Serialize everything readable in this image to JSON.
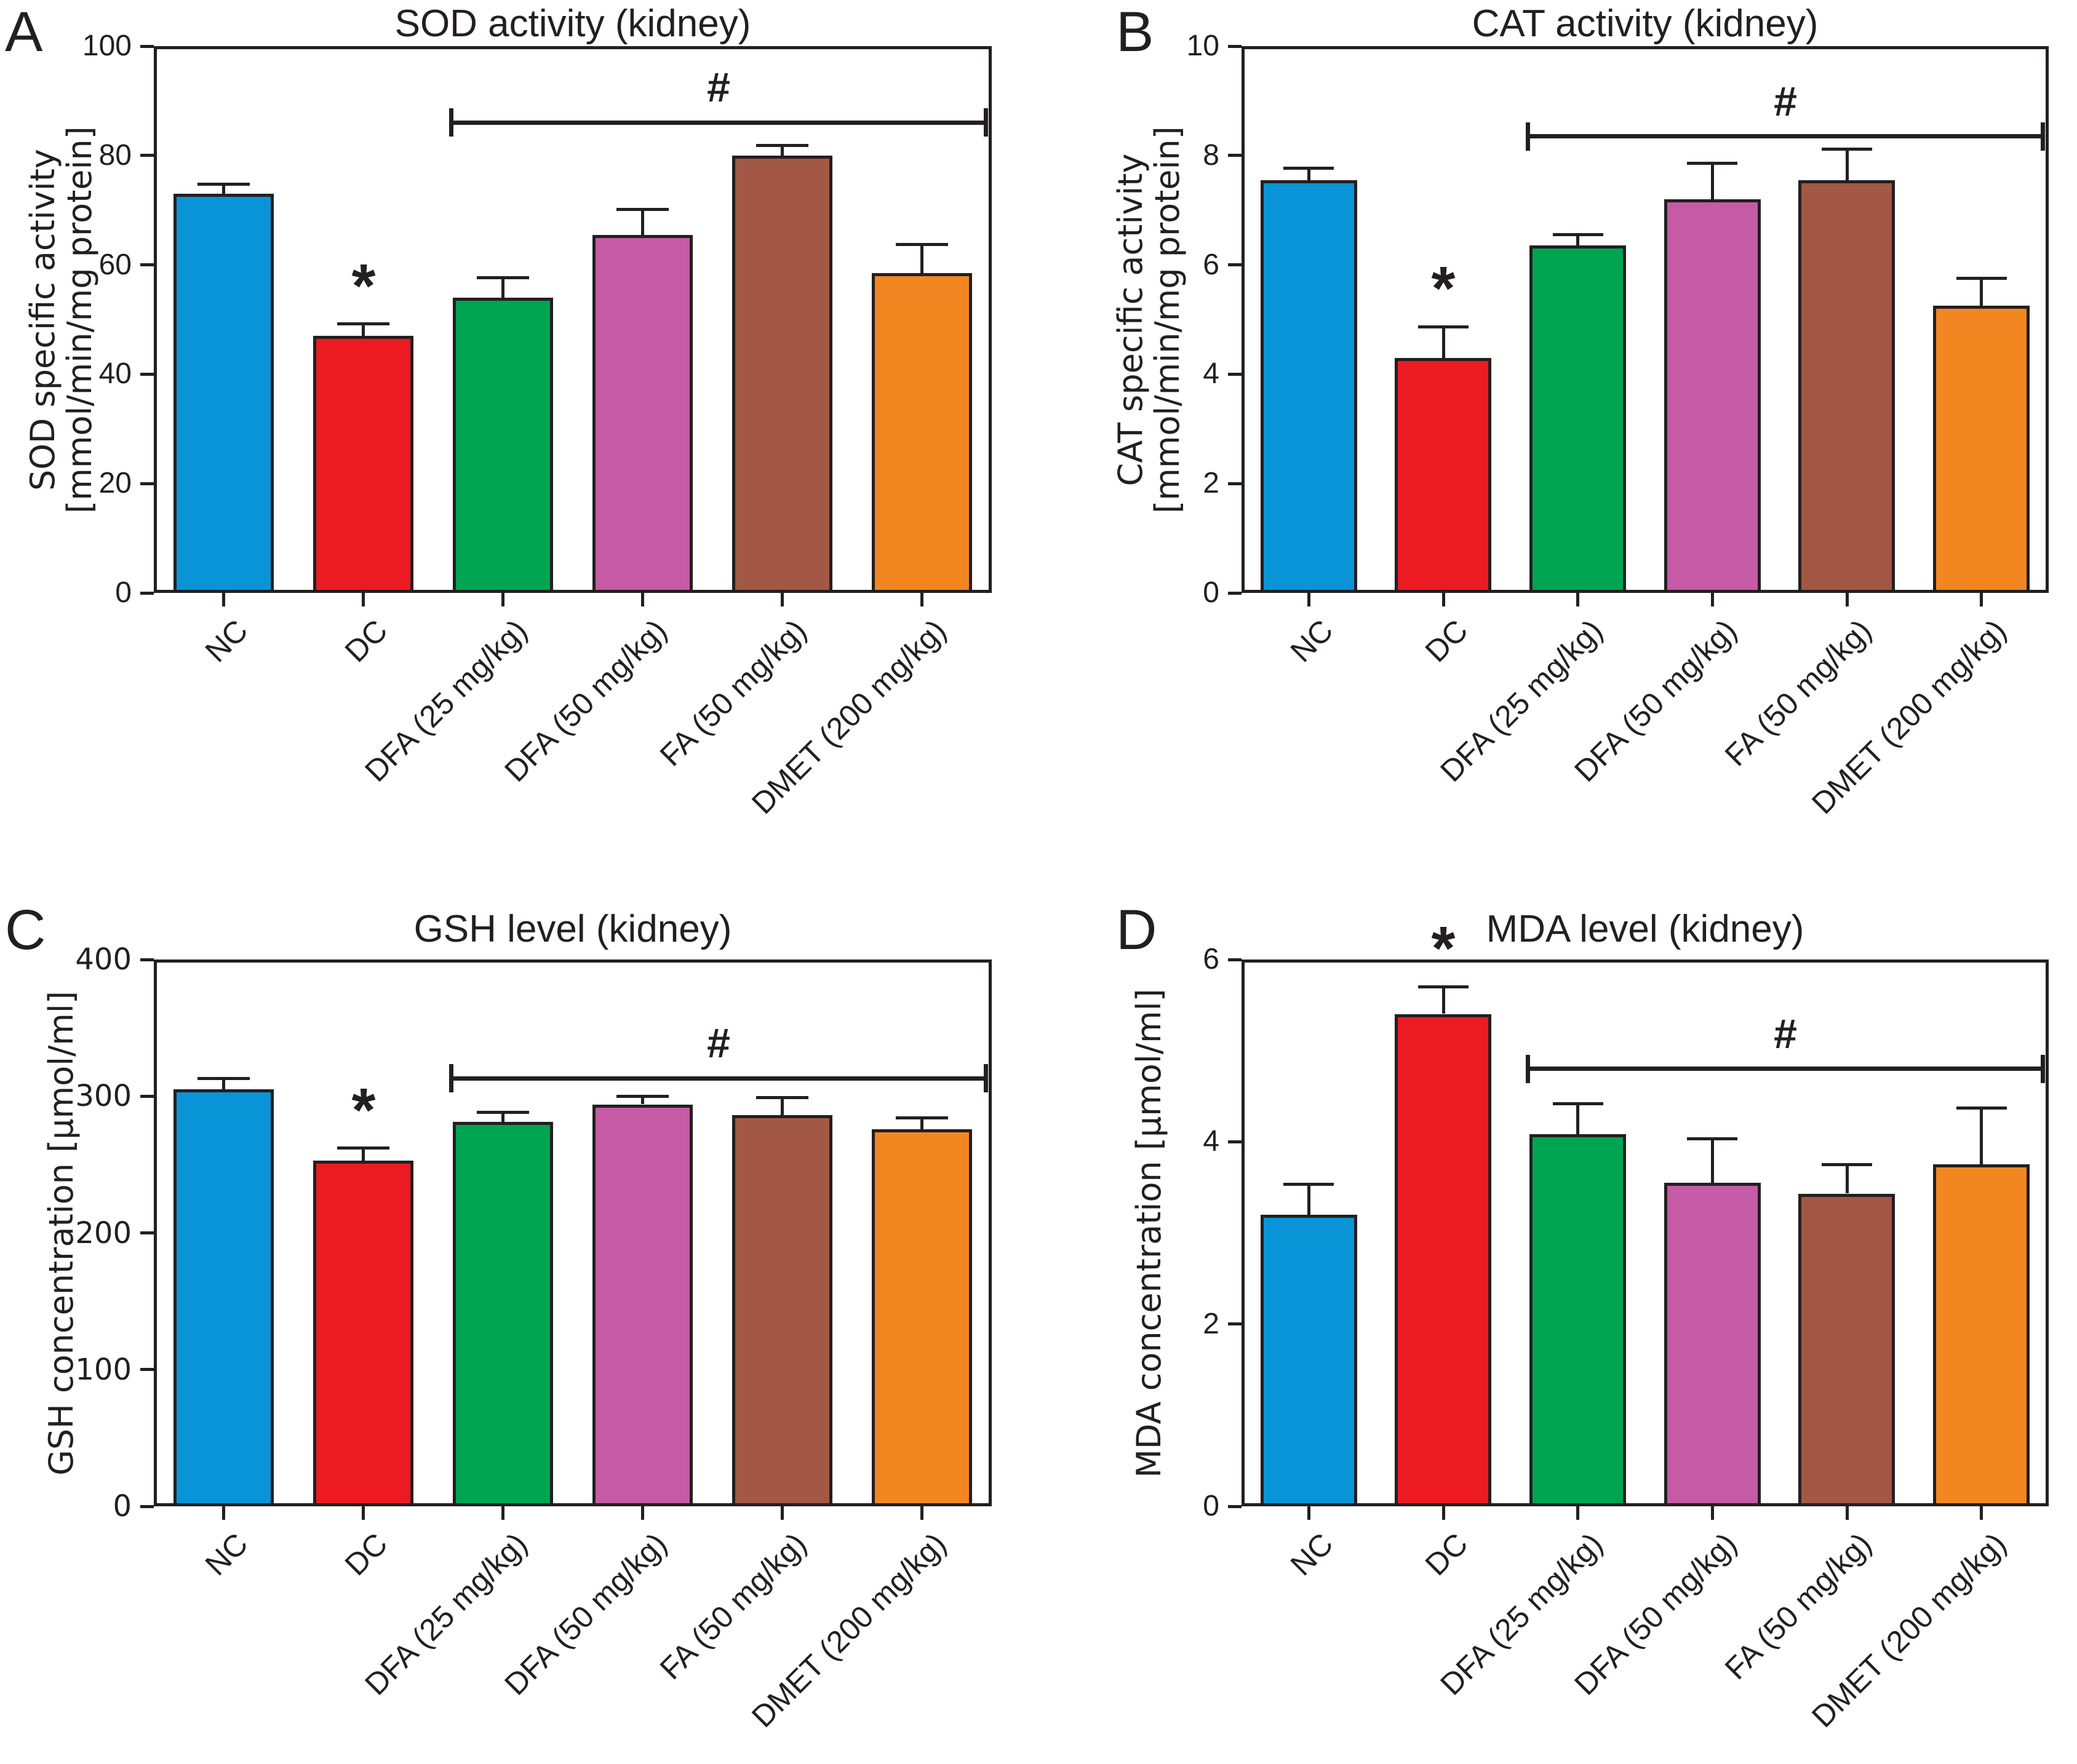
{
  "figure": {
    "ink_color": "#231f20",
    "background": "#ffffff",
    "star_symbol": "*",
    "hash_symbol": "#"
  },
  "chart_data": [
    {
      "panel_letter": "A",
      "type": "bar",
      "title": "SOD activity (kidney)",
      "ylabel_lines": [
        "SOD specific activity",
        "[mmol/min/mg protein]"
      ],
      "xlabel": "",
      "categories": [
        "NC",
        "DC",
        "DFA (25 mg/kg)",
        "DFA (50 mg/kg)",
        "FA (50 mg/kg)",
        "DMET (200 mg/kg)"
      ],
      "values": [
        73,
        47,
        54,
        65.5,
        80,
        58.5
      ],
      "errors_upper": [
        1.7,
        2.2,
        3.6,
        4.6,
        1.8,
        5.2
      ],
      "bar_colors": [
        "#0A94D8",
        "#EC1B23",
        "#00A551",
        "#C55AA6",
        "#A25845",
        "#F28621"
      ],
      "ylim": [
        0,
        100
      ],
      "yticks": [
        0,
        20,
        40,
        60,
        80,
        100
      ],
      "grid": false,
      "legend": null,
      "annotations": {
        "star_label": "*",
        "star_on_category": "DC",
        "bracket_label": "#",
        "bracket_from_category": "DFA (25 mg/kg)",
        "bracket_to_category": "DMET (200 mg/kg)",
        "bracket_y": 86
      }
    },
    {
      "panel_letter": "B",
      "type": "bar",
      "title": "CAT activity (kidney)",
      "ylabel_lines": [
        "CAT specific activity",
        "[mmol/min/mg protein]"
      ],
      "xlabel": "",
      "categories": [
        "NC",
        "DC",
        "DFA (25 mg/kg)",
        "DFA (50 mg/kg)",
        "FA (50 mg/kg)",
        "DMET (200 mg/kg)"
      ],
      "values": [
        7.55,
        4.3,
        6.35,
        7.2,
        7.55,
        5.25
      ],
      "errors_upper": [
        0.22,
        0.57,
        0.2,
        0.66,
        0.57,
        0.5
      ],
      "bar_colors": [
        "#0A94D8",
        "#EC1B23",
        "#00A551",
        "#C55AA6",
        "#A25845",
        "#F28621"
      ],
      "ylim": [
        0,
        10
      ],
      "yticks": [
        0,
        2,
        4,
        6,
        8,
        10
      ],
      "grid": false,
      "legend": null,
      "annotations": {
        "star_label": "*",
        "star_on_category": "DC",
        "bracket_label": "#",
        "bracket_from_category": "DFA (25 mg/kg)",
        "bracket_to_category": "DMET (200 mg/kg)",
        "bracket_y": 8.35
      }
    },
    {
      "panel_letter": "C",
      "type": "bar",
      "title": "GSH level (kidney)",
      "ylabel_lines": [
        "GSH concentration [µmol/ml]"
      ],
      "xlabel": "",
      "categories": [
        "NC",
        "DC",
        "DFA (25 mg/kg)",
        "DFA (50 mg/kg)",
        "FA (50 mg/kg)",
        "DMET (200 mg/kg)"
      ],
      "values": [
        305,
        253,
        281,
        294,
        286,
        276
      ],
      "errors_upper": [
        8,
        9,
        7,
        6,
        13,
        8
      ],
      "bar_colors": [
        "#0A94D8",
        "#EC1B23",
        "#00A551",
        "#C55AA6",
        "#A25845",
        "#F28621"
      ],
      "ylim": [
        0,
        400
      ],
      "yticks": [
        0,
        100,
        200,
        300,
        400
      ],
      "grid": false,
      "legend": null,
      "annotations": {
        "star_label": "*",
        "star_on_category": "DC",
        "bracket_label": "#",
        "bracket_from_category": "DFA (25 mg/kg)",
        "bracket_to_category": "DMET (200 mg/kg)",
        "bracket_y": 313
      }
    },
    {
      "panel_letter": "D",
      "type": "bar",
      "title": "MDA level (kidney)",
      "ylabel_lines": [
        "MDA concentration [µmol/ml]"
      ],
      "xlabel": "",
      "categories": [
        "NC",
        "DC",
        "DFA (25 mg/kg)",
        "DFA (50 mg/kg)",
        "FA (50 mg/kg)",
        "DMET (200 mg/kg)"
      ],
      "values": [
        3.2,
        5.4,
        4.08,
        3.55,
        3.43,
        3.75
      ],
      "errors_upper": [
        0.33,
        0.3,
        0.34,
        0.48,
        0.32,
        0.62
      ],
      "bar_colors": [
        "#0A94D8",
        "#EC1B23",
        "#00A551",
        "#C55AA6",
        "#A25845",
        "#F28621"
      ],
      "ylim": [
        0,
        6
      ],
      "yticks": [
        0,
        2,
        4,
        6
      ],
      "grid": false,
      "legend": null,
      "annotations": {
        "star_label": "*",
        "star_on_category": "DC",
        "bracket_label": "#",
        "bracket_from_category": "DFA (25 mg/kg)",
        "bracket_to_category": "DMET (200 mg/kg)",
        "bracket_y": 4.8
      }
    }
  ]
}
